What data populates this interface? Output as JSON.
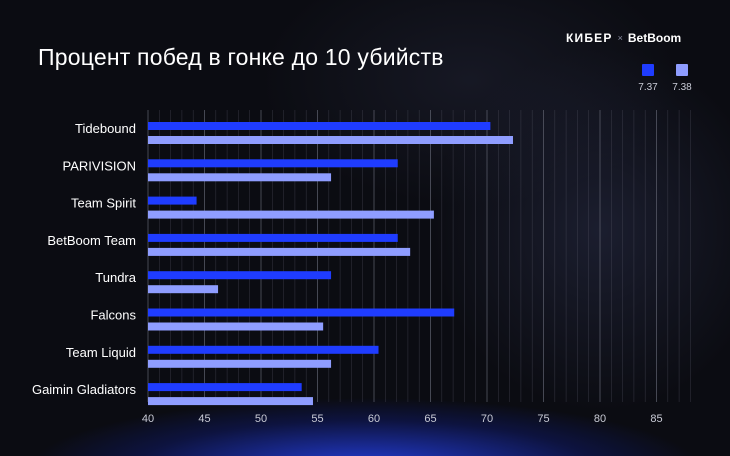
{
  "header": {
    "title": "Процент побед в гонке до 10 убийств",
    "logo_left": "КИБЕР",
    "logo_sep": "×",
    "logo_right": "BetBoom"
  },
  "colors": {
    "series_1": "#1f3cff",
    "series_2": "#8f9dff",
    "grid": "#5a5c6a",
    "background": "#0b0c12"
  },
  "chart_data": {
    "type": "bar",
    "orientation": "horizontal",
    "title": "Процент побед в гонке до 10 убийств",
    "xlabel": "",
    "ylabel": "",
    "categories": [
      "Tidebound",
      "PARIVISION",
      "Team Spirit",
      "BetBoom Team",
      "Tundra",
      "Falcons",
      "Team Liquid",
      "Gaimin Gladiators"
    ],
    "series": [
      {
        "name": "7.37",
        "values": [
          70.3,
          62.1,
          44.3,
          62.1,
          56.2,
          67.1,
          60.4,
          53.6
        ]
      },
      {
        "name": "7.38",
        "values": [
          72.3,
          56.2,
          65.3,
          63.2,
          46.2,
          55.5,
          56.2,
          54.6
        ]
      }
    ],
    "xlim": [
      40,
      88
    ],
    "xticks": [
      "40",
      "45",
      "50",
      "55",
      "60",
      "65",
      "70",
      "75",
      "80",
      "85"
    ],
    "grid": true,
    "legend_position": "top-right"
  }
}
